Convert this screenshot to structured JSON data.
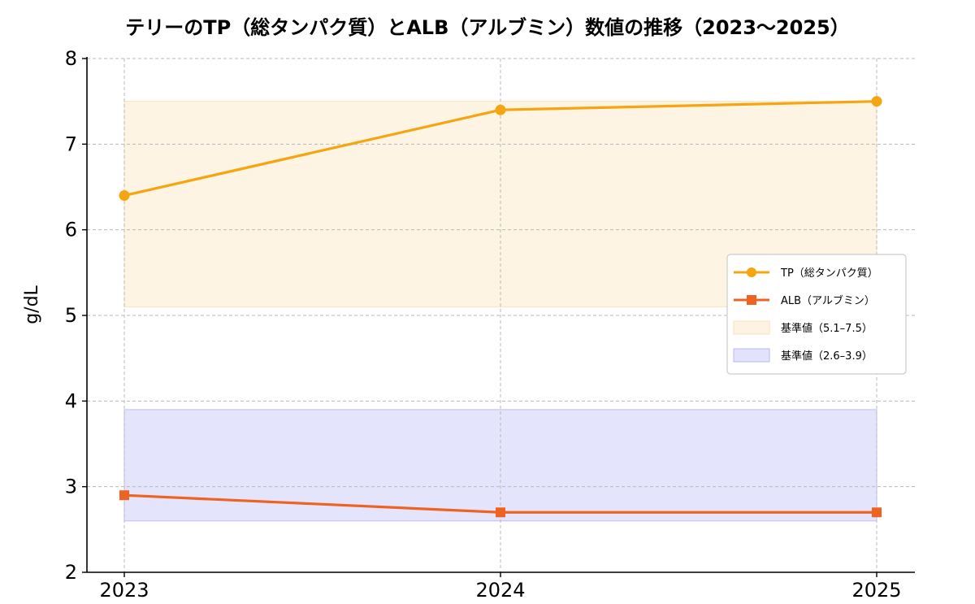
{
  "chart_data": {
    "type": "line",
    "title": "テリーのTP（総タンパク質）とALB（アルブミン）数値の推移（2023〜2025）",
    "xlabel": "",
    "ylabel": "g/dL",
    "categories": [
      "2023",
      "2024",
      "2025"
    ],
    "ylim": [
      2,
      8
    ],
    "yticks": [
      "2",
      "3",
      "4",
      "5",
      "6",
      "7",
      "8"
    ],
    "grid": true,
    "legend_position": "right",
    "series": [
      {
        "name": "TP（総タンパク質）",
        "values": [
          6.4,
          7.4,
          7.5
        ],
        "color": "#F5A511",
        "marker": "circle"
      },
      {
        "name": "ALB（アルブミン）",
        "values": [
          2.9,
          2.7,
          2.7
        ],
        "color": "#EE6321",
        "marker": "square"
      }
    ],
    "bands": [
      {
        "name": "基準値（5.1–7.5）",
        "range": [
          5.1,
          7.5
        ],
        "color": "#FDF3E2",
        "edge": "#F7E2B9"
      },
      {
        "name": "基準値（2.6–3.9）",
        "range": [
          2.6,
          3.9
        ],
        "color": "#E2E2FD",
        "edge": "#B8B8F5"
      }
    ]
  }
}
